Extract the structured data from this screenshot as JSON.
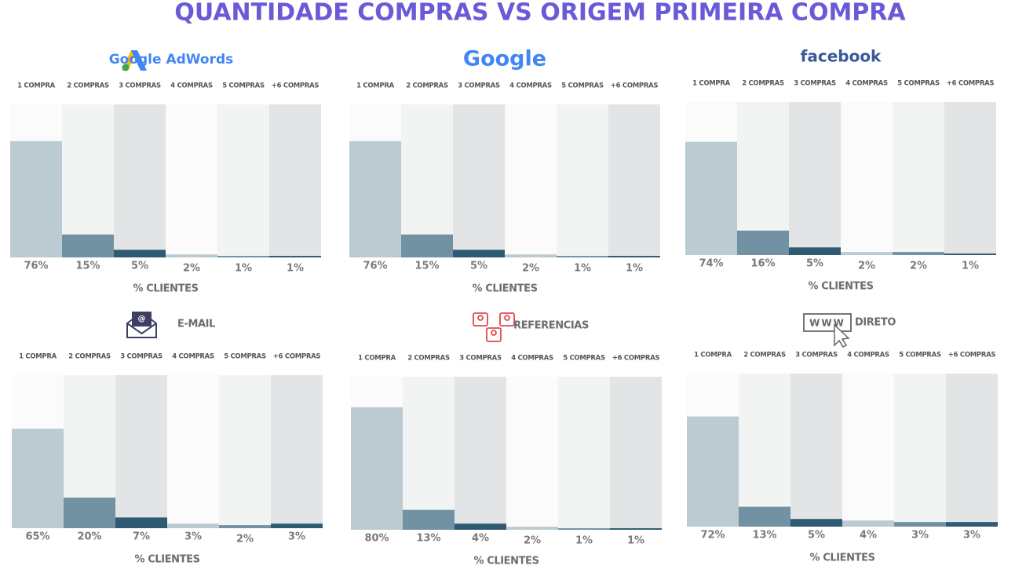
{
  "title": "QUANTIDADE  COMPRAS VS ORIGEM PRIMEIRA COMPRA",
  "chart_data": [
    {
      "type": "bar",
      "title": "Google AdWords",
      "title_color": "#4285f4",
      "categories": [
        "1 COMPRA",
        "2 COMPRAS",
        "3 COMPRAS",
        "4 COMPRAS",
        "5 COMPRAS",
        "+6 COMPRAS"
      ],
      "values": [
        76,
        15,
        5,
        2,
        1,
        1
      ],
      "value_labels": [
        "76%",
        "15%",
        "5%",
        "2%",
        "1%",
        "1%"
      ],
      "xlabel": "% CLIENTES",
      "ylim": [
        0,
        100
      ],
      "colors": [
        "#bccbd1",
        "#7092a3",
        "#2f5a73",
        "#bccbd1",
        "#7092a3",
        "#2f5a73"
      ],
      "column_colors": [
        "#fbfbfb",
        "#f2f3f3",
        "#e3e4e5",
        "#fbfbfb",
        "#f2f3f3",
        "#e3e4e5"
      ]
    },
    {
      "type": "bar",
      "title": "Google",
      "title_color": "#4285f4",
      "categories": [
        "1 COMPRA",
        "2 COMPRAS",
        "3 COMPRAS",
        "4 COMPRAS",
        "5 COMPRAS",
        "+6 COMPRAS"
      ],
      "values": [
        76,
        15,
        5,
        2,
        1,
        1
      ],
      "value_labels": [
        "76%",
        "15%",
        "5%",
        "2%",
        "1%",
        "1%"
      ],
      "xlabel": "% CLIENTES",
      "ylim": [
        0,
        100
      ],
      "colors": [
        "#bccbd1",
        "#7092a3",
        "#2f5a73",
        "#bccbd1",
        "#7092a3",
        "#2f5a73"
      ],
      "column_colors": [
        "#fbfbfb",
        "#f2f3f3",
        "#e3e4e5",
        "#fbfbfb",
        "#f2f3f3",
        "#e3e4e5"
      ]
    },
    {
      "type": "bar",
      "title": "facebook",
      "title_color": "#3b5998",
      "categories": [
        "1 COMPRA",
        "2 COMPRAS",
        "3 COMPRAS",
        "4 COMPRAS",
        "5 COMPRAS",
        "+6 COMPRAS"
      ],
      "values": [
        74,
        16,
        5,
        2,
        2,
        1
      ],
      "value_labels": [
        "74%",
        "16%",
        "5%",
        "2%",
        "2%",
        "1%"
      ],
      "xlabel": "% CLIENTES",
      "ylim": [
        0,
        100
      ],
      "colors": [
        "#bccbd1",
        "#7092a3",
        "#2f5a73",
        "#bccbd1",
        "#7092a3",
        "#2f5a73"
      ],
      "column_colors": [
        "#fbfbfb",
        "#f2f3f3",
        "#e3e4e5",
        "#fbfbfb",
        "#f2f3f3",
        "#e3e4e5"
      ]
    },
    {
      "type": "bar",
      "title": "E-MAIL",
      "title_color": "#6d6d6d",
      "categories": [
        "1 COMPRA",
        "2 COMPRAS",
        "3 COMPRAS",
        "4 COMPRAS",
        "5 COMPRAS",
        "+6 COMPRAS"
      ],
      "values": [
        65,
        20,
        7,
        3,
        2,
        3
      ],
      "value_labels": [
        "65%",
        "20%",
        "7%",
        "3%",
        "2%",
        "3%"
      ],
      "xlabel": "% CLIENTES",
      "ylim": [
        0,
        100
      ],
      "colors": [
        "#bccbd1",
        "#7092a3",
        "#2f5a73",
        "#bccbd1",
        "#7092a3",
        "#2f5a73"
      ],
      "column_colors": [
        "#fbfbfb",
        "#f2f3f3",
        "#e3e4e5",
        "#fbfbfb",
        "#f2f3f3",
        "#e3e4e5"
      ]
    },
    {
      "type": "bar",
      "title": "REFERENCIAS",
      "title_color": "#6d6d6d",
      "categories": [
        "1 COMPRA",
        "2 COMPRAS",
        "3 COMPRAS",
        "4 COMPRAS",
        "5 COMPRAS",
        "+6 COMPRAS"
      ],
      "values": [
        80,
        13,
        4,
        2,
        1,
        1
      ],
      "value_labels": [
        "80%",
        "13%",
        "4%",
        "2%",
        "1%",
        "1%"
      ],
      "xlabel": "% CLIENTES",
      "ylim": [
        0,
        100
      ],
      "colors": [
        "#bccbd1",
        "#7092a3",
        "#2f5a73",
        "#bccbd1",
        "#7092a3",
        "#2f5a73"
      ],
      "column_colors": [
        "#fbfbfb",
        "#f2f3f3",
        "#e3e4e5",
        "#fbfbfb",
        "#f2f3f3",
        "#e3e4e5"
      ]
    },
    {
      "type": "bar",
      "title": "DIRETO",
      "title_color": "#6d6d6d",
      "categories": [
        "1 COMPRA",
        "2 COMPRAS",
        "3 COMPRAS",
        "4 COMPRAS",
        "5 COMPRAS",
        "+6 COMPRAS"
      ],
      "values": [
        72,
        13,
        5,
        4,
        3,
        3
      ],
      "value_labels": [
        "72%",
        "13%",
        "5%",
        "4%",
        "3%",
        "3%"
      ],
      "xlabel": "% CLIENTES",
      "ylim": [
        0,
        100
      ],
      "colors": [
        "#bccbd1",
        "#7092a3",
        "#2f5a73",
        "#bccbd1",
        "#7092a3",
        "#2f5a73"
      ],
      "column_colors": [
        "#fbfbfb",
        "#f2f3f3",
        "#e3e4e5",
        "#fbfbfb",
        "#f2f3f3",
        "#e3e4e5"
      ]
    }
  ]
}
